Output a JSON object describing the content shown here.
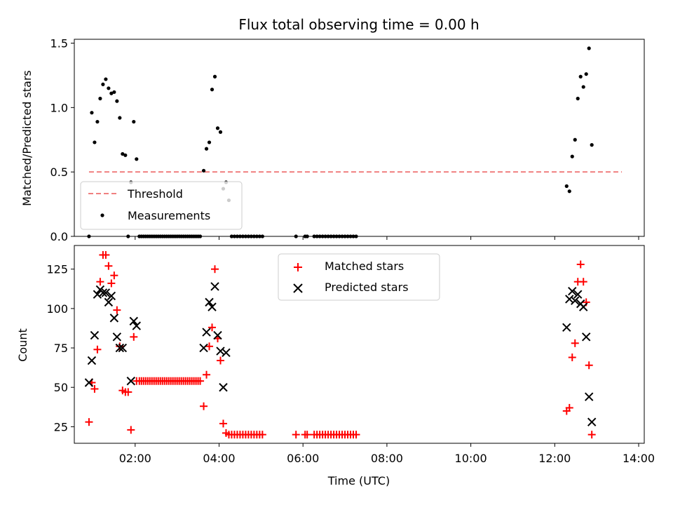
{
  "chart_data": [
    {
      "type": "scatter",
      "title": "Flux total observing time = 0.00 h",
      "ylabel": "Matched/Predicted stars",
      "xlabel": "",
      "xlim": [
        "00:33",
        "14:08"
      ],
      "ylim": [
        0,
        1.53
      ],
      "yticks": [
        "0.0",
        "0.5",
        "1.0",
        "1.5"
      ],
      "ytick_values": [
        0,
        0.5,
        1.0,
        1.5
      ],
      "legend_position": "lower-left",
      "threshold": {
        "name": "Threshold",
        "value": 0.5,
        "x_start": "00:54",
        "x_end": "13:36",
        "color": "#f08080"
      },
      "series": [
        {
          "name": "Measurements",
          "color": "#000000",
          "points": [
            [
              "00:54",
              0.0
            ],
            [
              "00:58",
              0.96
            ],
            [
              "01:02",
              0.73
            ],
            [
              "01:06",
              0.89
            ],
            [
              "01:10",
              1.07
            ],
            [
              "01:14",
              1.18
            ],
            [
              "01:18",
              1.22
            ],
            [
              "01:22",
              1.15
            ],
            [
              "01:26",
              1.11
            ],
            [
              "01:30",
              1.12
            ],
            [
              "01:34",
              1.05
            ],
            [
              "01:38",
              0.92
            ],
            [
              "01:42",
              0.64
            ],
            [
              "01:46",
              0.63
            ],
            [
              "01:50",
              0.0
            ],
            [
              "01:54",
              0.42
            ],
            [
              "01:58",
              0.89
            ],
            [
              "02:02",
              0.6
            ],
            [
              "02:06",
              0.0
            ],
            [
              "02:09",
              0.0
            ],
            [
              "02:12",
              0.0
            ],
            [
              "02:15",
              0.0
            ],
            [
              "02:18",
              0.0
            ],
            [
              "02:21",
              0.0
            ],
            [
              "02:24",
              0.0
            ],
            [
              "02:27",
              0.0
            ],
            [
              "02:30",
              0.0
            ],
            [
              "02:33",
              0.0
            ],
            [
              "02:36",
              0.0
            ],
            [
              "02:39",
              0.0
            ],
            [
              "02:42",
              0.0
            ],
            [
              "02:45",
              0.0
            ],
            [
              "02:48",
              0.0
            ],
            [
              "02:51",
              0.0
            ],
            [
              "02:54",
              0.0
            ],
            [
              "02:57",
              0.0
            ],
            [
              "03:00",
              0.0
            ],
            [
              "03:03",
              0.0
            ],
            [
              "03:06",
              0.0
            ],
            [
              "03:09",
              0.0
            ],
            [
              "03:12",
              0.0
            ],
            [
              "03:15",
              0.0
            ],
            [
              "03:18",
              0.0
            ],
            [
              "03:21",
              0.0
            ],
            [
              "03:24",
              0.0
            ],
            [
              "03:27",
              0.0
            ],
            [
              "03:30",
              0.0
            ],
            [
              "03:33",
              0.0
            ],
            [
              "03:38",
              0.51
            ],
            [
              "03:42",
              0.68
            ],
            [
              "03:46",
              0.73
            ],
            [
              "03:50",
              1.14
            ],
            [
              "03:54",
              1.24
            ],
            [
              "03:58",
              0.84
            ],
            [
              "04:02",
              0.81
            ],
            [
              "04:06",
              0.37
            ],
            [
              "04:10",
              0.42
            ],
            [
              "04:14",
              0.28
            ],
            [
              "04:18",
              0.0
            ],
            [
              "04:22",
              0.0
            ],
            [
              "04:26",
              0.0
            ],
            [
              "04:30",
              0.0
            ],
            [
              "04:34",
              0.0
            ],
            [
              "04:38",
              0.0
            ],
            [
              "04:42",
              0.0
            ],
            [
              "04:46",
              0.0
            ],
            [
              "04:50",
              0.0
            ],
            [
              "04:54",
              0.0
            ],
            [
              "04:58",
              0.0
            ],
            [
              "05:02",
              0.0
            ],
            [
              "05:50",
              0.0
            ],
            [
              "06:03",
              0.0
            ],
            [
              "06:06",
              0.0
            ],
            [
              "06:16",
              0.0
            ],
            [
              "06:20",
              0.0
            ],
            [
              "06:24",
              0.0
            ],
            [
              "06:28",
              0.0
            ],
            [
              "06:32",
              0.0
            ],
            [
              "06:36",
              0.0
            ],
            [
              "06:40",
              0.0
            ],
            [
              "06:44",
              0.0
            ],
            [
              "06:48",
              0.0
            ],
            [
              "06:52",
              0.0
            ],
            [
              "06:56",
              0.0
            ],
            [
              "07:00",
              0.0
            ],
            [
              "07:04",
              0.0
            ],
            [
              "07:08",
              0.0
            ],
            [
              "07:12",
              0.0
            ],
            [
              "07:16",
              0.0
            ],
            [
              "12:17",
              0.39
            ],
            [
              "12:21",
              0.35
            ],
            [
              "12:25",
              0.62
            ],
            [
              "12:29",
              0.75
            ],
            [
              "12:33",
              1.07
            ],
            [
              "12:37",
              1.24
            ],
            [
              "12:41",
              1.16
            ],
            [
              "12:45",
              1.26
            ],
            [
              "12:49",
              1.46
            ],
            [
              "12:53",
              0.71
            ]
          ]
        }
      ]
    },
    {
      "type": "scatter",
      "title": "",
      "ylabel": "Count",
      "xlabel": "Time (UTC)",
      "xlim": [
        "00:33",
        "14:08"
      ],
      "ylim": [
        14.5,
        140
      ],
      "yticks": [
        "25",
        "50",
        "75",
        "100",
        "125"
      ],
      "ytick_values": [
        25,
        50,
        75,
        100,
        125
      ],
      "xticks": [
        "02:00",
        "04:00",
        "06:00",
        "08:00",
        "10:00",
        "12:00",
        "14:00"
      ],
      "legend_position": "upper-center",
      "series": [
        {
          "name": "Matched stars",
          "color": "#ff0000",
          "marker": "plus",
          "points": [
            [
              "00:54",
              28
            ],
            [
              "00:58",
              53
            ],
            [
              "01:02",
              49
            ],
            [
              "01:06",
              74
            ],
            [
              "01:10",
              117
            ],
            [
              "01:14",
              134
            ],
            [
              "01:18",
              134
            ],
            [
              "01:22",
              127
            ],
            [
              "01:26",
              116
            ],
            [
              "01:30",
              121
            ],
            [
              "01:34",
              99
            ],
            [
              "01:38",
              76
            ],
            [
              "01:42",
              48
            ],
            [
              "01:46",
              47
            ],
            [
              "01:50",
              47
            ],
            [
              "01:54",
              23
            ],
            [
              "01:58",
              82
            ],
            [
              "02:02",
              54
            ],
            [
              "02:06",
              54
            ],
            [
              "02:09",
              54
            ],
            [
              "02:12",
              54
            ],
            [
              "02:15",
              54
            ],
            [
              "02:18",
              54
            ],
            [
              "02:21",
              54
            ],
            [
              "02:24",
              54
            ],
            [
              "02:27",
              54
            ],
            [
              "02:30",
              54
            ],
            [
              "02:33",
              54
            ],
            [
              "02:36",
              54
            ],
            [
              "02:39",
              54
            ],
            [
              "02:42",
              54
            ],
            [
              "02:45",
              54
            ],
            [
              "02:48",
              54
            ],
            [
              "02:51",
              54
            ],
            [
              "02:54",
              54
            ],
            [
              "02:57",
              54
            ],
            [
              "03:00",
              54
            ],
            [
              "03:03",
              54
            ],
            [
              "03:06",
              54
            ],
            [
              "03:09",
              54
            ],
            [
              "03:12",
              54
            ],
            [
              "03:15",
              54
            ],
            [
              "03:18",
              54
            ],
            [
              "03:21",
              54
            ],
            [
              "03:24",
              54
            ],
            [
              "03:27",
              54
            ],
            [
              "03:30",
              54
            ],
            [
              "03:33",
              54
            ],
            [
              "03:38",
              38
            ],
            [
              "03:42",
              58
            ],
            [
              "03:46",
              76
            ],
            [
              "03:50",
              88
            ],
            [
              "03:54",
              125
            ],
            [
              "03:58",
              81
            ],
            [
              "04:02",
              67
            ],
            [
              "04:06",
              27
            ],
            [
              "04:10",
              21
            ],
            [
              "04:14",
              20
            ],
            [
              "04:18",
              20
            ],
            [
              "04:22",
              20
            ],
            [
              "04:26",
              20
            ],
            [
              "04:30",
              20
            ],
            [
              "04:34",
              20
            ],
            [
              "04:38",
              20
            ],
            [
              "04:42",
              20
            ],
            [
              "04:46",
              20
            ],
            [
              "04:50",
              20
            ],
            [
              "04:54",
              20
            ],
            [
              "04:58",
              20
            ],
            [
              "05:02",
              20
            ],
            [
              "05:50",
              20
            ],
            [
              "06:03",
              20
            ],
            [
              "06:06",
              20
            ],
            [
              "06:16",
              20
            ],
            [
              "06:20",
              20
            ],
            [
              "06:24",
              20
            ],
            [
              "06:28",
              20
            ],
            [
              "06:32",
              20
            ],
            [
              "06:36",
              20
            ],
            [
              "06:40",
              20
            ],
            [
              "06:44",
              20
            ],
            [
              "06:48",
              20
            ],
            [
              "06:52",
              20
            ],
            [
              "06:56",
              20
            ],
            [
              "07:00",
              20
            ],
            [
              "07:04",
              20
            ],
            [
              "07:08",
              20
            ],
            [
              "07:12",
              20
            ],
            [
              "07:16",
              20
            ],
            [
              "12:17",
              35
            ],
            [
              "12:21",
              37
            ],
            [
              "12:25",
              69
            ],
            [
              "12:29",
              78
            ],
            [
              "12:33",
              117
            ],
            [
              "12:37",
              128
            ],
            [
              "12:41",
              117
            ],
            [
              "12:45",
              104
            ],
            [
              "12:49",
              64
            ],
            [
              "12:53",
              20
            ]
          ]
        },
        {
          "name": "Predicted stars",
          "color": "#000000",
          "marker": "x",
          "points": [
            [
              "00:54",
              53
            ],
            [
              "00:58",
              67
            ],
            [
              "01:02",
              83
            ],
            [
              "01:06",
              109
            ],
            [
              "01:10",
              112
            ],
            [
              "01:14",
              110
            ],
            [
              "01:18",
              110
            ],
            [
              "01:22",
              104
            ],
            [
              "01:26",
              108
            ],
            [
              "01:30",
              94
            ],
            [
              "01:34",
              82
            ],
            [
              "01:38",
              75
            ],
            [
              "01:42",
              75
            ],
            [
              "01:54",
              54
            ],
            [
              "01:58",
              92
            ],
            [
              "02:02",
              89
            ],
            [
              "03:38",
              75
            ],
            [
              "03:42",
              85
            ],
            [
              "03:46",
              104
            ],
            [
              "03:50",
              101
            ],
            [
              "03:54",
              114
            ],
            [
              "03:58",
              83
            ],
            [
              "04:02",
              73
            ],
            [
              "04:06",
              50
            ],
            [
              "04:10",
              72
            ],
            [
              "12:17",
              88
            ],
            [
              "12:21",
              106
            ],
            [
              "12:25",
              111
            ],
            [
              "12:29",
              105
            ],
            [
              "12:33",
              109
            ],
            [
              "12:37",
              103
            ],
            [
              "12:41",
              101
            ],
            [
              "12:45",
              82
            ],
            [
              "12:49",
              44
            ],
            [
              "12:53",
              28
            ]
          ]
        }
      ]
    }
  ]
}
